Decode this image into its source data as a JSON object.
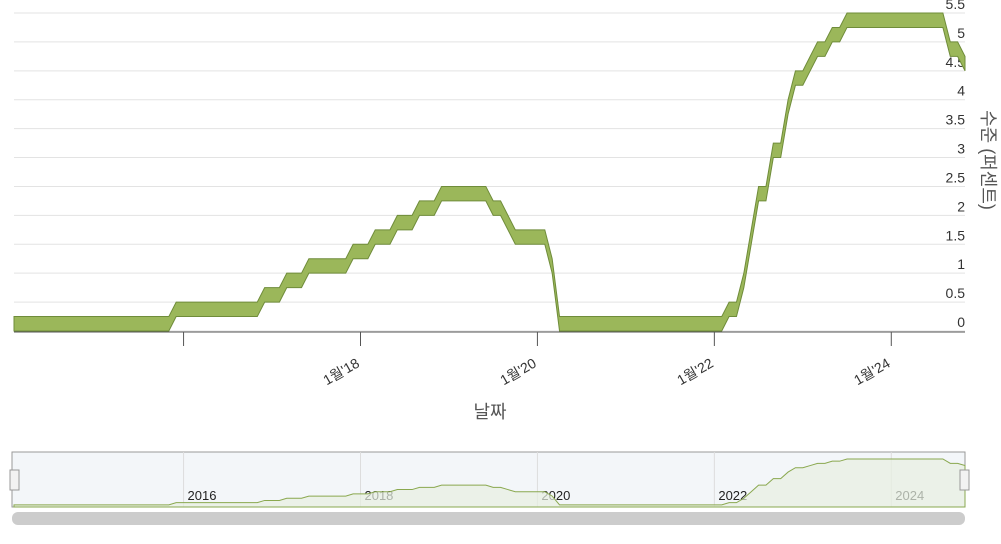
{
  "chart_data": {
    "type": "arearange",
    "x_title": "날짜",
    "y_title": "수준 (퍼센트)",
    "x": [
      "2014-02",
      "2015-11",
      "2015-12",
      "2016-11",
      "2016-12",
      "2017-02",
      "2017-03",
      "2017-05",
      "2017-06",
      "2017-11",
      "2017-12",
      "2018-02",
      "2018-03",
      "2018-05",
      "2018-06",
      "2018-08",
      "2018-09",
      "2018-11",
      "2018-12",
      "2019-06",
      "2019-07",
      "2019-08",
      "2019-09",
      "2019-10",
      "2020-02",
      "2020-03",
      "2020-04",
      "2022-02",
      "2022-03",
      "2022-04",
      "2022-05",
      "2022-06",
      "2022-07",
      "2022-08",
      "2022-09",
      "2022-10",
      "2022-11",
      "2022-12",
      "2023-01",
      "2023-02",
      "2023-03",
      "2023-04",
      "2023-05",
      "2023-06",
      "2023-07",
      "2024-08",
      "2024-09",
      "2024-10",
      "2024-11"
    ],
    "series": [
      {
        "color": "#9bb75a",
        "values": [
          0,
          0,
          0.25,
          0.25,
          0.5,
          0.5,
          0.75,
          0.75,
          1,
          1,
          1.25,
          1.25,
          1.5,
          1.5,
          1.75,
          1.75,
          2,
          2,
          2.25,
          2.25,
          2,
          2,
          1.75,
          1.5,
          1.5,
          1,
          0,
          0,
          0.25,
          0.25,
          0.75,
          1.5,
          2.25,
          2.25,
          3,
          3,
          3.75,
          4.25,
          4.25,
          4.5,
          4.75,
          4.75,
          5,
          5,
          5.25,
          5.25,
          4.75,
          4.75,
          4.5
        ]
      },
      {
        "color": "#9bb75a",
        "values": [
          0.25,
          0.25,
          0.5,
          0.5,
          0.75,
          0.75,
          1,
          1,
          1.25,
          1.25,
          1.5,
          1.5,
          1.75,
          1.75,
          2,
          2,
          2.25,
          2.25,
          2.5,
          2.5,
          2.25,
          2.25,
          2,
          1.75,
          1.75,
          1.25,
          0.25,
          0.25,
          0.5,
          0.5,
          1,
          1.75,
          2.5,
          2.5,
          3.25,
          3.25,
          4,
          4.5,
          4.5,
          4.75,
          5,
          5,
          5.25,
          5.25,
          5.5,
          5.5,
          5,
          5,
          4.75
        ]
      }
    ],
    "xlim": [
      "2014-02",
      "2024-11"
    ],
    "xticks": [
      {
        "value": "2016-01",
        "label": null
      },
      {
        "value": "2018-01",
        "label": "1월'18"
      },
      {
        "value": "2020-01",
        "label": "1월'20"
      },
      {
        "value": "2022-01",
        "label": "1월'22"
      },
      {
        "value": "2024-01",
        "label": "1월'24"
      }
    ],
    "ylim": [
      0,
      5.5
    ],
    "yticks": [
      0,
      0.5,
      1,
      1.5,
      2,
      2.5,
      3,
      3.5,
      4,
      4.5,
      5,
      5.5
    ],
    "grid": true,
    "navigator_ticks": [
      2016,
      2018,
      2020,
      2022,
      2024
    ]
  }
}
